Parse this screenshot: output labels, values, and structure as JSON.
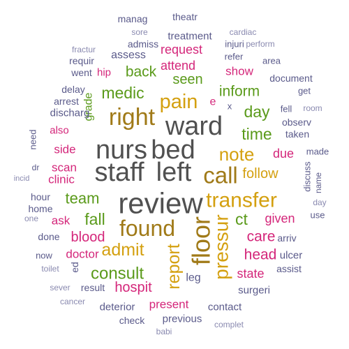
{
  "colors": {
    "slate": "#5a5a8a",
    "magenta": "#d4267a",
    "green": "#5a9a1a",
    "gold": "#d4a010",
    "gray": "#505050",
    "light": "#8a8ab0",
    "brown": "#a07a18"
  },
  "words": [
    {
      "text": "manag",
      "color": "slate"
    },
    {
      "text": "theatr",
      "color": "slate"
    },
    {
      "text": "sore",
      "color": "light"
    },
    {
      "text": "treatment",
      "color": "slate"
    },
    {
      "text": "cardiac",
      "color": "light"
    },
    {
      "text": "injuri",
      "color": "slate"
    },
    {
      "text": "admiss",
      "color": "slate"
    },
    {
      "text": "perform",
      "color": "light"
    },
    {
      "text": "fractur",
      "color": "light"
    },
    {
      "text": "request",
      "color": "magenta"
    },
    {
      "text": "assess",
      "color": "slate"
    },
    {
      "text": "requir",
      "color": "slate"
    },
    {
      "text": "refer",
      "color": "slate"
    },
    {
      "text": "area",
      "color": "slate"
    },
    {
      "text": "attend",
      "color": "magenta"
    },
    {
      "text": "went",
      "color": "slate"
    },
    {
      "text": "hip",
      "color": "magenta"
    },
    {
      "text": "back",
      "color": "green"
    },
    {
      "text": "show",
      "color": "magenta"
    },
    {
      "text": "document",
      "color": "slate"
    },
    {
      "text": "seen",
      "color": "green"
    },
    {
      "text": "delay",
      "color": "slate"
    },
    {
      "text": "medic",
      "color": "green"
    },
    {
      "text": "inform",
      "color": "green"
    },
    {
      "text": "get",
      "color": "slate"
    },
    {
      "text": "arrest",
      "color": "slate"
    },
    {
      "text": "grade",
      "color": "green"
    },
    {
      "text": "pain",
      "color": "gold"
    },
    {
      "text": "e",
      "color": "magenta"
    },
    {
      "text": "fell",
      "color": "slate"
    },
    {
      "text": "room",
      "color": "light"
    },
    {
      "text": "discharg",
      "color": "slate"
    },
    {
      "text": "x",
      "color": "slate"
    },
    {
      "text": "day",
      "color": "green"
    },
    {
      "text": "right",
      "color": "brown"
    },
    {
      "text": "observ",
      "color": "slate"
    },
    {
      "text": "ward",
      "color": "gray"
    },
    {
      "text": "also",
      "color": "magenta"
    },
    {
      "text": "time",
      "color": "green"
    },
    {
      "text": "taken",
      "color": "slate"
    },
    {
      "text": "need",
      "color": "slate"
    },
    {
      "text": "side",
      "color": "magenta"
    },
    {
      "text": "nurs",
      "color": "gray"
    },
    {
      "text": "bed",
      "color": "gray"
    },
    {
      "text": "note",
      "color": "gold"
    },
    {
      "text": "due",
      "color": "magenta"
    },
    {
      "text": "made",
      "color": "slate"
    },
    {
      "text": "scan",
      "color": "magenta"
    },
    {
      "text": "dr",
      "color": "slate"
    },
    {
      "text": "discuss",
      "color": "slate"
    },
    {
      "text": "staff",
      "color": "gray"
    },
    {
      "text": "left",
      "color": "gray"
    },
    {
      "text": "call",
      "color": "brown"
    },
    {
      "text": "follow",
      "color": "gold"
    },
    {
      "text": "incid",
      "color": "light"
    },
    {
      "text": "clinic",
      "color": "magenta"
    },
    {
      "text": "name",
      "color": "slate"
    },
    {
      "text": "team",
      "color": "green"
    },
    {
      "text": "hour",
      "color": "slate"
    },
    {
      "text": "review",
      "color": "gray"
    },
    {
      "text": "transfer",
      "color": "gold"
    },
    {
      "text": "day",
      "color": "light"
    },
    {
      "text": "home",
      "color": "slate"
    },
    {
      "text": "use",
      "color": "slate"
    },
    {
      "text": "one",
      "color": "light"
    },
    {
      "text": "fall",
      "color": "green"
    },
    {
      "text": "ct",
      "color": "green"
    },
    {
      "text": "given",
      "color": "magenta"
    },
    {
      "text": "ask",
      "color": "magenta"
    },
    {
      "text": "found",
      "color": "brown"
    },
    {
      "text": "done",
      "color": "slate"
    },
    {
      "text": "blood",
      "color": "magenta"
    },
    {
      "text": "care",
      "color": "magenta"
    },
    {
      "text": "arriv",
      "color": "slate"
    },
    {
      "text": "floor",
      "color": "brown"
    },
    {
      "text": "pressur",
      "color": "gold"
    },
    {
      "text": "admit",
      "color": "gold"
    },
    {
      "text": "now",
      "color": "slate"
    },
    {
      "text": "doctor",
      "color": "magenta"
    },
    {
      "text": "head",
      "color": "magenta"
    },
    {
      "text": "ulcer",
      "color": "slate"
    },
    {
      "text": "report",
      "color": "gold"
    },
    {
      "text": "toilet",
      "color": "light"
    },
    {
      "text": "ed",
      "color": "slate"
    },
    {
      "text": "consult",
      "color": "green"
    },
    {
      "text": "state",
      "color": "magenta"
    },
    {
      "text": "assist",
      "color": "slate"
    },
    {
      "text": "leg",
      "color": "slate"
    },
    {
      "text": "hospit",
      "color": "magenta"
    },
    {
      "text": "sever",
      "color": "light"
    },
    {
      "text": "result",
      "color": "slate"
    },
    {
      "text": "surgeri",
      "color": "slate"
    },
    {
      "text": "cancer",
      "color": "light"
    },
    {
      "text": "present",
      "color": "magenta"
    },
    {
      "text": "deterior",
      "color": "slate"
    },
    {
      "text": "contact",
      "color": "slate"
    },
    {
      "text": "check",
      "color": "slate"
    },
    {
      "text": "previous",
      "color": "slate"
    },
    {
      "text": "babi",
      "color": "light"
    },
    {
      "text": "complet",
      "color": "light"
    }
  ]
}
